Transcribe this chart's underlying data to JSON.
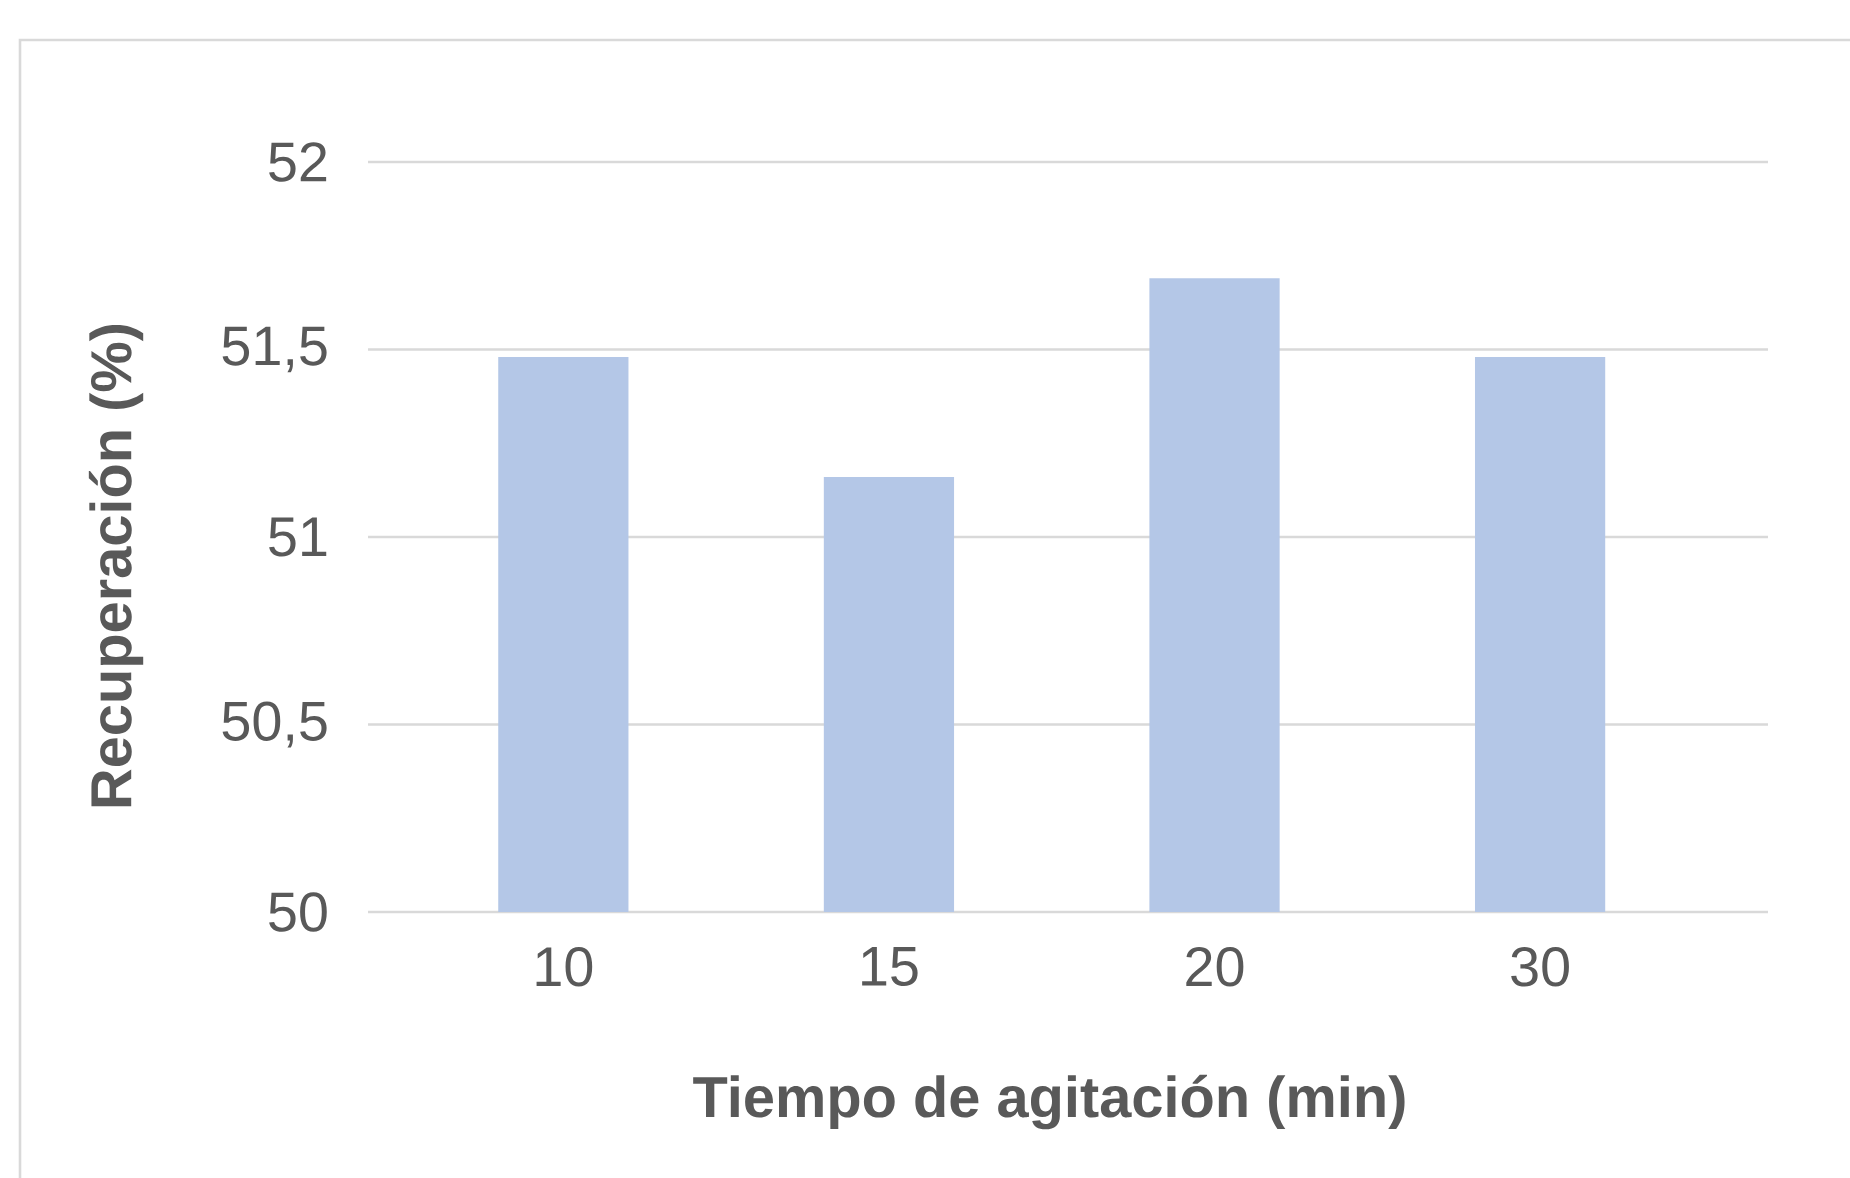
{
  "chart_data": {
    "type": "bar",
    "xlabel": "Tiempo de agitación (min)",
    "ylabel": "Recuperación (%)",
    "categories": [
      "10",
      "15",
      "20",
      "30"
    ],
    "values": [
      51.48,
      51.16,
      51.69,
      51.48
    ],
    "color": "#b4c7e7",
    "ylim": [
      50,
      52
    ],
    "yticks": [
      50,
      {
        "value": 50.5,
        "label": "50,5"
      },
      51,
      {
        "value": 51.5,
        "label": "51,5"
      },
      52
    ],
    "grid": "y"
  }
}
